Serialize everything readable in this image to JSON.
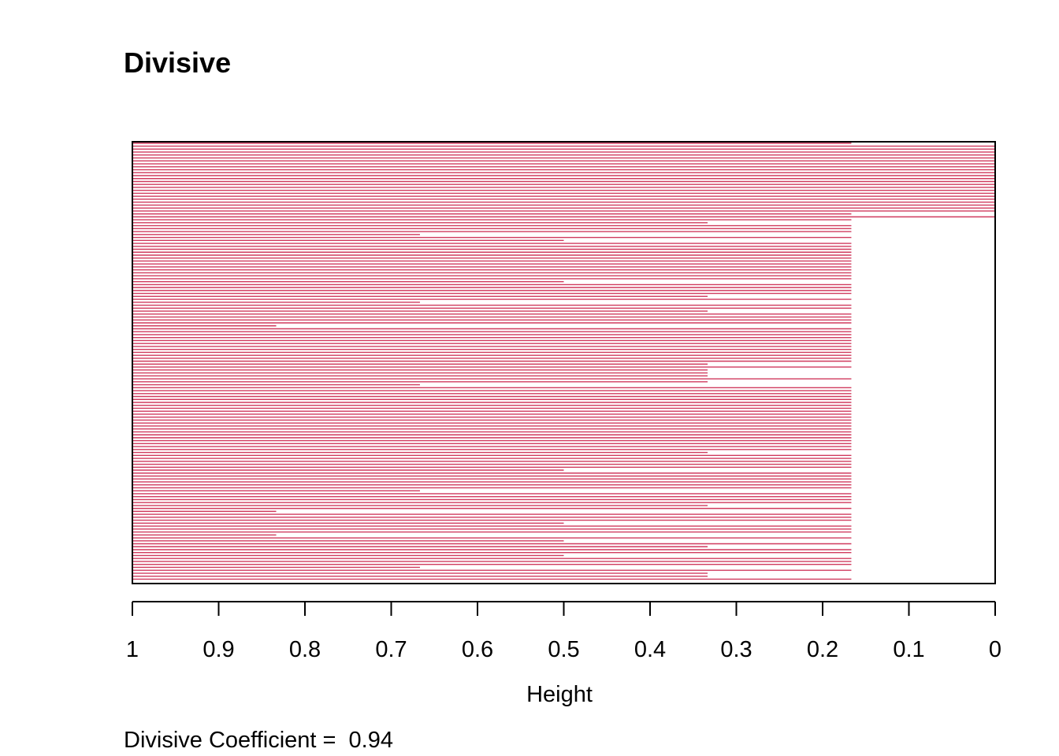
{
  "chart_data": {
    "type": "bar",
    "subtype": "banner",
    "title": "Divisive",
    "xlabel": "Height",
    "xlim": [
      1,
      0
    ],
    "x_ticks": [
      "1",
      "0.9",
      "0.8",
      "0.7",
      "0.6",
      "0.5",
      "0.4",
      "0.3",
      "0.2",
      "0.1",
      "0"
    ],
    "caption": "Divisive Coefficient =  0.94",
    "n_observations": 150,
    "merge_heights": [
      0.1667,
      0,
      0,
      0,
      0,
      0,
      0,
      0,
      0,
      0,
      0,
      0,
      0,
      0,
      0,
      0,
      0,
      0,
      0,
      0,
      0,
      0,
      0,
      0,
      0.1667,
      0,
      0.1667,
      0.3333,
      0.1667,
      0.1667,
      0.1667,
      0.6667,
      0.1667,
      0.5,
      0.1667,
      0.1667,
      0.1667,
      0.1667,
      0.1667,
      0.1667,
      0.1667,
      0.1667,
      0.1667,
      0.1667,
      0.1667,
      0.1667,
      0.1667,
      0.5,
      0.1667,
      0.1667,
      0.1667,
      0.1667,
      0.3333,
      0.1667,
      0.6667,
      0.1667,
      0.1667,
      0.3333,
      0.1667,
      0.1667,
      0.1667,
      0.1667,
      0.8333,
      0.1667,
      0.1667,
      0.1667,
      0.1667,
      0.1667,
      0.1667,
      0.1667,
      0.1667,
      0.1667,
      0.1667,
      0.1667,
      0.1667,
      0.3333,
      0.1667,
      0.3333,
      0.3333,
      0.3333,
      0.1667,
      0.3333,
      0.6667,
      0.1667,
      0.1667,
      0.1667,
      0.1667,
      0.1667,
      0.1667,
      0.1667,
      0.1667,
      0.1667,
      0.1667,
      0.1667,
      0.1667,
      0.1667,
      0.1667,
      0.1667,
      0.1667,
      0.1667,
      0.1667,
      0.1667,
      0.1667,
      0.1667,
      0.1667,
      0.3333,
      0.1667,
      0.1667,
      0.1667,
      0.1667,
      0.1667,
      0.5,
      0.1667,
      0.1667,
      0.1667,
      0.1667,
      0.1667,
      0.1667,
      0.6667,
      0.1667,
      0.1667,
      0.1667,
      0.1667,
      0.3333,
      0.1667,
      0.8333,
      0.1667,
      0.1667,
      0.1667,
      0.5,
      0.1667,
      0.1667,
      0.1667,
      0.8333,
      0.1667,
      0.5,
      0.1667,
      0.3333,
      0.1667,
      0.1667,
      0.5,
      0.1667,
      0.1667,
      0.1667,
      0.6667,
      0.1667,
      0.3333,
      0.3333,
      0.1667
    ],
    "colors": {
      "bar": "#d03a5e",
      "background": "#ffffff",
      "axis": "#000000"
    },
    "grid": false,
    "legend": "none"
  }
}
